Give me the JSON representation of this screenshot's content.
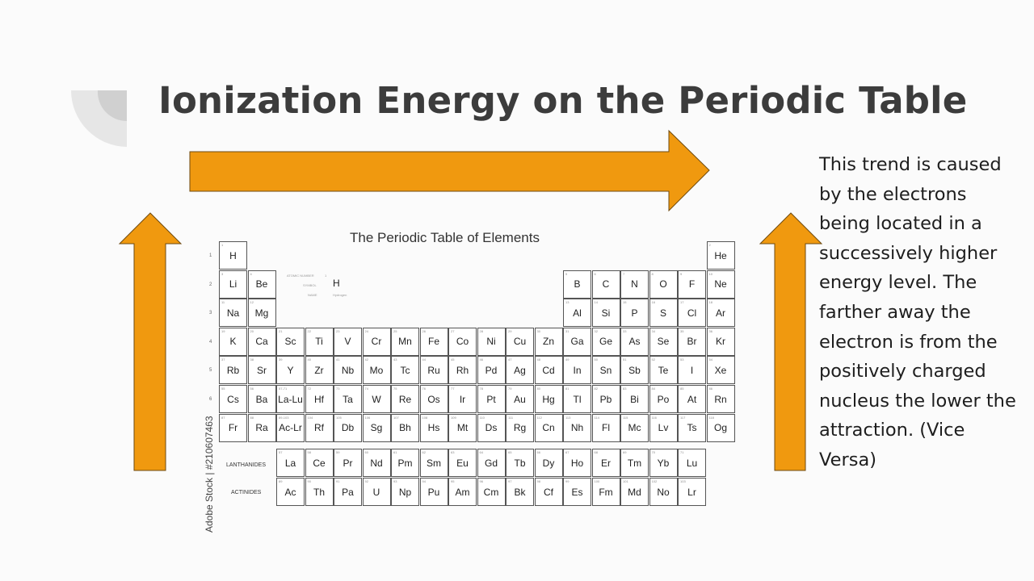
{
  "slide": {
    "title": "Ionization Energy on the Periodic Table",
    "explanation": "This trend is caused by the electrons being located in a successively higher energy level. The farther away the electron is from the positively charged nucleus the lower the attraction. (Vice Versa)",
    "arrow_color": "#f0990f"
  },
  "periodic_table": {
    "title": "The Periodic Table of Elements",
    "watermark": "Adobe Stock | #210607463",
    "legend": {
      "atomic_number_label": "ATOMIC NUMBER",
      "atomic_number_value": "1",
      "symbol_label": "SYMBOL",
      "symbol_value": "H",
      "name_label": "NAME",
      "name_value": "Hydrogen"
    },
    "lanthanides_label": "LANTHANIDES",
    "actinides_label": "ACTINIDES",
    "period_labels": [
      "1",
      "2",
      "3",
      "4",
      "5",
      "6",
      "7"
    ],
    "main_rows": [
      [
        "H",
        "",
        "",
        "",
        "",
        "",
        "",
        "",
        "",
        "",
        "",
        "",
        "",
        "",
        "",
        "",
        "",
        "He"
      ],
      [
        "Li",
        "Be",
        "",
        "",
        "",
        "",
        "",
        "",
        "",
        "",
        "",
        "",
        "B",
        "C",
        "N",
        "O",
        "F",
        "Ne"
      ],
      [
        "Na",
        "Mg",
        "",
        "",
        "",
        "",
        "",
        "",
        "",
        "",
        "",
        "",
        "Al",
        "Si",
        "P",
        "S",
        "Cl",
        "Ar"
      ],
      [
        "K",
        "Ca",
        "Sc",
        "Ti",
        "V",
        "Cr",
        "Mn",
        "Fe",
        "Co",
        "Ni",
        "Cu",
        "Zn",
        "Ga",
        "Ge",
        "As",
        "Se",
        "Br",
        "Kr"
      ],
      [
        "Rb",
        "Sr",
        "Y",
        "Zr",
        "Nb",
        "Mo",
        "Tc",
        "Ru",
        "Rh",
        "Pd",
        "Ag",
        "Cd",
        "In",
        "Sn",
        "Sb",
        "Te",
        "I",
        "Xe"
      ],
      [
        "Cs",
        "Ba",
        "La-Lu",
        "Hf",
        "Ta",
        "W",
        "Re",
        "Os",
        "Ir",
        "Pt",
        "Au",
        "Hg",
        "Tl",
        "Pb",
        "Bi",
        "Po",
        "At",
        "Rn"
      ],
      [
        "Fr",
        "Ra",
        "Ac-Lr",
        "Rf",
        "Db",
        "Sg",
        "Bh",
        "Hs",
        "Mt",
        "Ds",
        "Rg",
        "Cn",
        "Nh",
        "Fl",
        "Mc",
        "Lv",
        "Ts",
        "Og"
      ]
    ],
    "main_numbers": [
      [
        "1",
        "",
        "",
        "",
        "",
        "",
        "",
        "",
        "",
        "",
        "",
        "",
        "",
        "",
        "",
        "",
        "",
        "2"
      ],
      [
        "3",
        "4",
        "",
        "",
        "",
        "",
        "",
        "",
        "",
        "",
        "",
        "",
        "5",
        "6",
        "7",
        "8",
        "9",
        "10"
      ],
      [
        "11",
        "12",
        "",
        "",
        "",
        "",
        "",
        "",
        "",
        "",
        "",
        "",
        "13",
        "14",
        "15",
        "16",
        "17",
        "18"
      ],
      [
        "19",
        "20",
        "21",
        "22",
        "23",
        "24",
        "25",
        "26",
        "27",
        "28",
        "29",
        "30",
        "31",
        "32",
        "33",
        "34",
        "35",
        "36"
      ],
      [
        "37",
        "38",
        "39",
        "40",
        "41",
        "42",
        "43",
        "44",
        "45",
        "46",
        "47",
        "48",
        "49",
        "50",
        "51",
        "52",
        "53",
        "54"
      ],
      [
        "55",
        "56",
        "57-71",
        "72",
        "73",
        "74",
        "75",
        "76",
        "77",
        "78",
        "79",
        "80",
        "81",
        "82",
        "83",
        "84",
        "85",
        "86"
      ],
      [
        "87",
        "88",
        "89-103",
        "104",
        "105",
        "106",
        "107",
        "108",
        "109",
        "110",
        "111",
        "112",
        "113",
        "114",
        "115",
        "116",
        "117",
        "118"
      ]
    ],
    "lanthanides": [
      "La",
      "Ce",
      "Pr",
      "Nd",
      "Pm",
      "Sm",
      "Eu",
      "Gd",
      "Tb",
      "Dy",
      "Ho",
      "Er",
      "Tm",
      "Yb",
      "Lu"
    ],
    "lanthanide_numbers": [
      "57",
      "58",
      "59",
      "60",
      "61",
      "62",
      "63",
      "64",
      "65",
      "66",
      "67",
      "68",
      "69",
      "70",
      "71"
    ],
    "actinides": [
      "Ac",
      "Th",
      "Pa",
      "U",
      "Np",
      "Pu",
      "Am",
      "Cm",
      "Bk",
      "Cf",
      "Es",
      "Fm",
      "Md",
      "No",
      "Lr"
    ],
    "actinide_numbers": [
      "89",
      "90",
      "91",
      "92",
      "93",
      "94",
      "95",
      "96",
      "97",
      "98",
      "99",
      "100",
      "101",
      "102",
      "103"
    ]
  }
}
